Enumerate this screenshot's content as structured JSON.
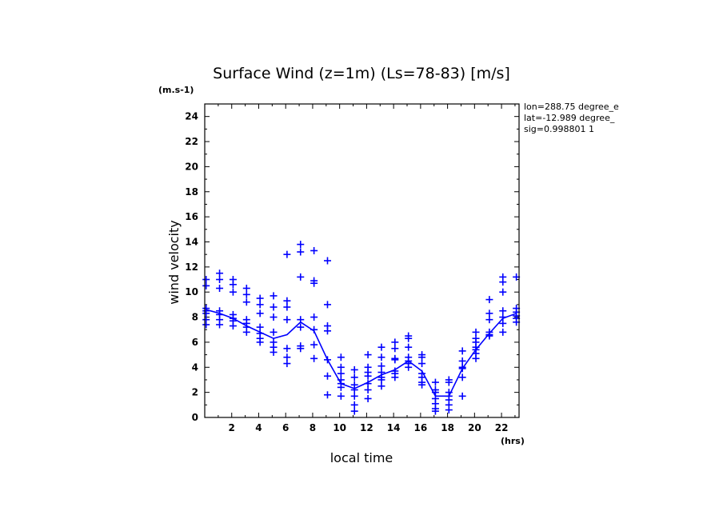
{
  "chart_data": {
    "type": "scatter",
    "title": "Surface Wind (z=1m) (Ls=78-83) [m/s]",
    "ylabel": "wind velocity",
    "yunit": "(m.s-1)",
    "xlabel": "local time",
    "xunit": "(hrs)",
    "xlim": [
      0,
      23.3
    ],
    "ylim": [
      0,
      25
    ],
    "xticks": [
      2,
      4,
      6,
      8,
      10,
      12,
      14,
      16,
      18,
      20,
      22
    ],
    "yticks": [
      0,
      2,
      4,
      6,
      8,
      10,
      12,
      14,
      16,
      18,
      20,
      22,
      24
    ],
    "grid": false,
    "info": [
      "lon=288.75 degree_e",
      "lat=-12.989 degree_",
      "sig=0.998801 1"
    ],
    "series": [
      {
        "kind": "points",
        "points": [
          [
            0.1,
            11.0
          ],
          [
            0.1,
            10.5
          ],
          [
            0.1,
            8.7
          ],
          [
            0.1,
            8.5
          ],
          [
            0.1,
            8.3
          ],
          [
            0.1,
            7.8
          ],
          [
            0.1,
            7.4
          ],
          [
            1.1,
            11.5
          ],
          [
            1.1,
            11.0
          ],
          [
            1.1,
            10.3
          ],
          [
            1.1,
            8.5
          ],
          [
            1.1,
            8.2
          ],
          [
            1.1,
            7.8
          ],
          [
            1.1,
            7.4
          ],
          [
            2.1,
            11.0
          ],
          [
            2.1,
            10.6
          ],
          [
            2.1,
            10.0
          ],
          [
            2.1,
            8.2
          ],
          [
            2.1,
            7.9
          ],
          [
            2.1,
            7.7
          ],
          [
            2.1,
            7.3
          ],
          [
            3.1,
            10.3
          ],
          [
            3.1,
            9.8
          ],
          [
            3.1,
            9.2
          ],
          [
            3.1,
            7.8
          ],
          [
            3.1,
            7.5
          ],
          [
            3.1,
            7.2
          ],
          [
            3.1,
            6.8
          ],
          [
            4.1,
            9.5
          ],
          [
            4.1,
            9.0
          ],
          [
            4.1,
            8.3
          ],
          [
            4.1,
            7.2
          ],
          [
            4.1,
            6.7
          ],
          [
            4.1,
            6.3
          ],
          [
            4.1,
            6.0
          ],
          [
            5.1,
            9.7
          ],
          [
            5.1,
            8.8
          ],
          [
            5.1,
            8.0
          ],
          [
            5.1,
            6.8
          ],
          [
            5.1,
            6.0
          ],
          [
            5.1,
            5.6
          ],
          [
            5.1,
            5.2
          ],
          [
            6.1,
            13.0
          ],
          [
            6.1,
            9.3
          ],
          [
            6.1,
            8.8
          ],
          [
            6.1,
            7.8
          ],
          [
            6.1,
            5.5
          ],
          [
            6.1,
            4.8
          ],
          [
            6.1,
            4.3
          ],
          [
            7.1,
            13.8
          ],
          [
            7.1,
            13.2
          ],
          [
            7.1,
            11.2
          ],
          [
            7.1,
            7.8
          ],
          [
            7.1,
            7.2
          ],
          [
            7.1,
            5.7
          ],
          [
            7.1,
            5.5
          ],
          [
            8.1,
            13.3
          ],
          [
            8.1,
            10.9
          ],
          [
            8.1,
            10.7
          ],
          [
            8.1,
            8.0
          ],
          [
            8.1,
            7.0
          ],
          [
            8.1,
            5.8
          ],
          [
            8.1,
            4.7
          ],
          [
            9.1,
            12.5
          ],
          [
            9.1,
            9.0
          ],
          [
            9.1,
            7.3
          ],
          [
            9.1,
            6.9
          ],
          [
            9.1,
            4.6
          ],
          [
            9.1,
            3.3
          ],
          [
            9.1,
            1.8
          ],
          [
            10.1,
            4.8
          ],
          [
            10.1,
            4.0
          ],
          [
            10.1,
            3.5
          ],
          [
            10.1,
            3.0
          ],
          [
            10.1,
            2.7
          ],
          [
            10.1,
            2.4
          ],
          [
            10.1,
            1.7
          ],
          [
            11.1,
            3.8
          ],
          [
            11.1,
            3.2
          ],
          [
            11.1,
            2.6
          ],
          [
            11.1,
            2.2
          ],
          [
            11.1,
            1.7
          ],
          [
            11.1,
            1.0
          ],
          [
            11.1,
            0.5
          ],
          [
            12.1,
            5.0
          ],
          [
            12.1,
            4.0
          ],
          [
            12.1,
            3.6
          ],
          [
            12.1,
            3.3
          ],
          [
            12.1,
            2.7
          ],
          [
            12.1,
            2.2
          ],
          [
            12.1,
            1.5
          ],
          [
            13.1,
            5.6
          ],
          [
            13.1,
            4.8
          ],
          [
            13.1,
            4.1
          ],
          [
            13.1,
            3.6
          ],
          [
            13.1,
            3.2
          ],
          [
            13.1,
            3.0
          ],
          [
            13.1,
            2.5
          ],
          [
            14.1,
            6.0
          ],
          [
            14.1,
            5.5
          ],
          [
            14.1,
            4.7
          ],
          [
            14.1,
            4.6
          ],
          [
            14.1,
            3.7
          ],
          [
            14.1,
            3.5
          ],
          [
            14.1,
            3.2
          ],
          [
            15.1,
            6.5
          ],
          [
            15.1,
            6.3
          ],
          [
            15.1,
            5.6
          ],
          [
            15.1,
            4.8
          ],
          [
            15.1,
            4.5
          ],
          [
            15.1,
            4.3
          ],
          [
            15.1,
            4.0
          ],
          [
            16.1,
            5.0
          ],
          [
            16.1,
            4.8
          ],
          [
            16.1,
            4.3
          ],
          [
            16.1,
            3.5
          ],
          [
            16.1,
            3.2
          ],
          [
            16.1,
            2.8
          ],
          [
            16.1,
            2.6
          ],
          [
            17.1,
            2.8
          ],
          [
            17.1,
            2.2
          ],
          [
            17.1,
            2.0
          ],
          [
            17.1,
            1.5
          ],
          [
            17.1,
            1.1
          ],
          [
            17.1,
            0.7
          ],
          [
            17.1,
            0.5
          ],
          [
            18.1,
            3.0
          ],
          [
            18.1,
            2.8
          ],
          [
            18.1,
            2.0
          ],
          [
            18.1,
            1.7
          ],
          [
            18.1,
            1.4
          ],
          [
            18.1,
            1.0
          ],
          [
            18.1,
            0.6
          ],
          [
            19.1,
            5.3
          ],
          [
            19.1,
            4.5
          ],
          [
            19.1,
            4.0
          ],
          [
            19.1,
            3.9
          ],
          [
            19.1,
            3.2
          ],
          [
            19.1,
            1.7
          ],
          [
            20.1,
            6.8
          ],
          [
            20.1,
            6.3
          ],
          [
            20.1,
            6.0
          ],
          [
            20.1,
            5.6
          ],
          [
            20.1,
            5.4
          ],
          [
            20.1,
            5.1
          ],
          [
            20.1,
            4.7
          ],
          [
            21.1,
            9.4
          ],
          [
            21.1,
            8.3
          ],
          [
            21.1,
            7.8
          ],
          [
            21.1,
            6.8
          ],
          [
            21.1,
            6.6
          ],
          [
            21.1,
            6.5
          ],
          [
            22.1,
            11.2
          ],
          [
            22.1,
            10.8
          ],
          [
            22.1,
            10.0
          ],
          [
            22.1,
            8.5
          ],
          [
            22.1,
            8.0
          ],
          [
            22.1,
            7.5
          ],
          [
            22.1,
            6.8
          ],
          [
            23.1,
            11.2
          ],
          [
            23.1,
            8.7
          ],
          [
            23.1,
            8.4
          ],
          [
            23.1,
            8.1
          ],
          [
            23.1,
            7.9
          ],
          [
            23.1,
            7.6
          ]
        ]
      },
      {
        "kind": "line",
        "x": [
          0.1,
          1.1,
          2.1,
          3.1,
          4.1,
          5.1,
          6.1,
          7.1,
          8.1,
          9.1,
          10.1,
          11.1,
          12.1,
          13.1,
          14.1,
          15.1,
          16.1,
          17.1,
          18.1,
          19.1,
          20.1,
          21.1,
          22.1,
          23.1
        ],
        "y": [
          8.6,
          8.3,
          7.9,
          7.3,
          6.8,
          6.3,
          6.6,
          7.6,
          6.9,
          4.6,
          2.7,
          2.3,
          2.8,
          3.4,
          3.8,
          4.5,
          3.7,
          1.7,
          1.7,
          3.9,
          5.4,
          6.7,
          7.9,
          8.3
        ]
      }
    ]
  }
}
